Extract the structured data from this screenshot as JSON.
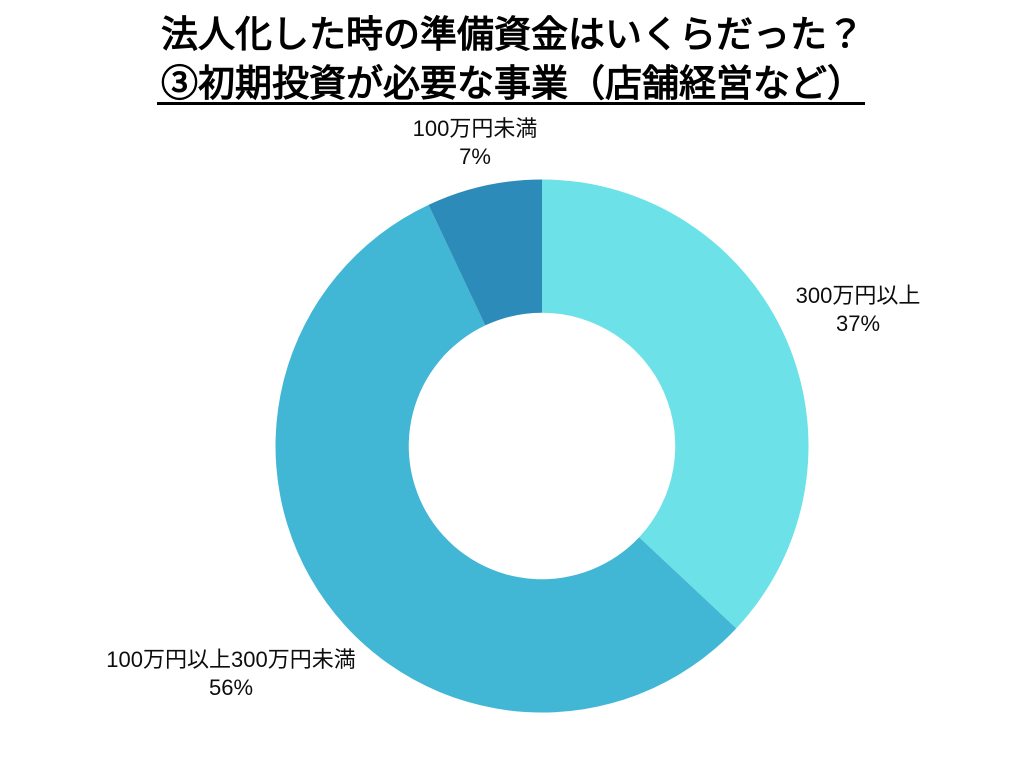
{
  "page": {
    "background_color": "#ffffff"
  },
  "title": {
    "line1": "法人化した時の準備資金はいくらだった？",
    "line2": "③初期投資が必要な事業（店舗経営など）",
    "color": "#000000",
    "underlined_line": 2
  },
  "chart_data": {
    "type": "pie",
    "subtype": "donut",
    "title": "法人化した時の準備資金はいくらだった？③初期投資が必要な事業（店舗経営など）",
    "categories": [
      "300万円以上",
      "100万円以上300万円未満",
      "100万円未満"
    ],
    "values": [
      37,
      56,
      7
    ],
    "unit": "percent",
    "colors": [
      "#6CE2E8",
      "#41B7D5",
      "#2D8BB9"
    ],
    "start_angle_deg": 0,
    "direction": "clockwise",
    "inner_radius_ratio": 0.5,
    "legend_position": "outside-labels",
    "segments": [
      {
        "label": "300万円以上",
        "value": 37,
        "percent_label": "37%",
        "color": "#6CE2E8"
      },
      {
        "label": "100万円以上300万円未満",
        "value": 56,
        "percent_label": "56%",
        "color": "#41B7D5"
      },
      {
        "label": "100万円未満",
        "value": 7,
        "percent_label": "7%",
        "color": "#2D8BB9"
      }
    ]
  }
}
